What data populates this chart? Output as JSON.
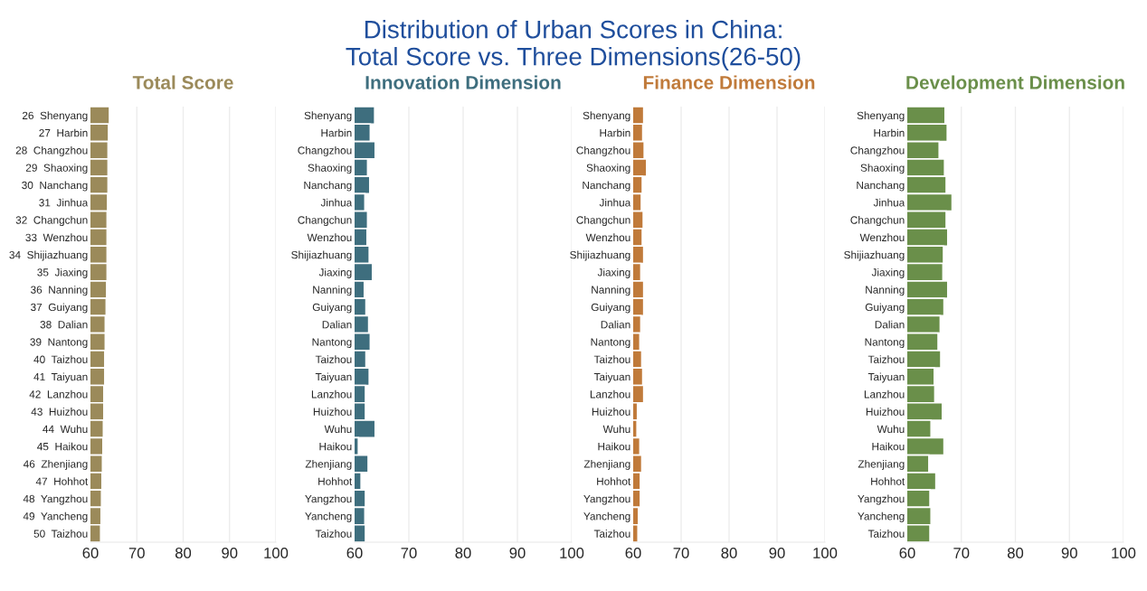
{
  "chart_data": [
    {
      "type": "bar",
      "orientation": "horizontal",
      "title": "Total Score",
      "color": "#9b8a5a",
      "annotations": [
        "Distribution of Urban Scores in China:\nTotal Score vs. Three Dimensions(26-50)"
      ],
      "categories": [
        "26  Shenyang",
        "27  Harbin",
        "28  Changzhou",
        "29  Shaoxing",
        "30  Nanchang",
        "31  Jinhua",
        "32  Changchun",
        "33  Wenzhou",
        "34  Shijiazhuang",
        "35  Jiaxing",
        "36  Nanning",
        "37  Guiyang",
        "38  Dalian",
        "39  Nantong",
        "40  Taizhou",
        "41  Taiyuan",
        "42  Lanzhou",
        "43  Huizhou",
        "44  Wuhu",
        "45  Haikou",
        "46  Zhenjiang",
        "47  Hohhot",
        "48  Yangzhou",
        "49  Yancheng",
        "50  Taizhou"
      ],
      "values": [
        64.1,
        63.9,
        63.8,
        63.8,
        63.8,
        63.7,
        63.6,
        63.6,
        63.6,
        63.6,
        63.5,
        63.4,
        63.2,
        63.2,
        63.1,
        63.1,
        62.9,
        62.9,
        62.8,
        62.7,
        62.6,
        62.5,
        62.4,
        62.3,
        62.2
      ],
      "xlim": [
        60,
        100
      ],
      "xticks": [
        60,
        70,
        80,
        90,
        100
      ],
      "grid": "x"
    },
    {
      "type": "bar",
      "orientation": "horizontal",
      "title": "Innovation Dimension",
      "color": "#3e6e7e",
      "categories": [
        "Shenyang",
        "Harbin",
        "Changzhou",
        "Shaoxing",
        "Nanchang",
        "Jinhua",
        "Changchun",
        "Wenzhou",
        "Shijiazhuang",
        "Jiaxing",
        "Nanning",
        "Guiyang",
        "Dalian",
        "Nantong",
        "Taizhou",
        "Taiyuan",
        "Lanzhou",
        "Huizhou",
        "Wuhu",
        "Haikou",
        "Zhenjiang",
        "Hohhot",
        "Yangzhou",
        "Yancheng",
        "Taizhou"
      ],
      "values": [
        63.7,
        62.9,
        63.8,
        62.4,
        62.8,
        61.9,
        62.4,
        62.3,
        62.7,
        63.3,
        61.8,
        62.1,
        62.6,
        62.9,
        62.1,
        62.7,
        62.0,
        62.0,
        63.8,
        60.7,
        62.5,
        61.2,
        62.0,
        61.9,
        62.0
      ],
      "xlim": [
        60,
        100
      ],
      "xticks": [
        60,
        70,
        80,
        90,
        100
      ],
      "grid": "x"
    },
    {
      "type": "bar",
      "orientation": "horizontal",
      "title": "Finance Dimension",
      "color": "#c07a3a",
      "categories": [
        "Shenyang",
        "Harbin",
        "Changzhou",
        "Shaoxing",
        "Nanchang",
        "Jinhua",
        "Changchun",
        "Wenzhou",
        "Shijiazhuang",
        "Jiaxing",
        "Nanning",
        "Guiyang",
        "Dalian",
        "Nantong",
        "Taizhou",
        "Taiyuan",
        "Lanzhou",
        "Huizhou",
        "Wuhu",
        "Haikou",
        "Zhenjiang",
        "Hohhot",
        "Yangzhou",
        "Yancheng",
        "Taizhou"
      ],
      "values": [
        62.2,
        62.0,
        62.3,
        62.8,
        61.9,
        61.7,
        62.1,
        61.9,
        62.2,
        61.6,
        62.2,
        62.2,
        61.6,
        61.4,
        61.8,
        62.0,
        62.2,
        60.9,
        60.8,
        61.4,
        61.8,
        61.5,
        61.5,
        61.1,
        61.0
      ],
      "xlim": [
        60,
        100
      ],
      "xticks": [
        60,
        70,
        80,
        90,
        100
      ],
      "grid": "x"
    },
    {
      "type": "bar",
      "orientation": "horizontal",
      "title": "Development Dimension",
      "color": "#6a8f4a",
      "categories": [
        "Shenyang",
        "Harbin",
        "Changzhou",
        "Shaoxing",
        "Nanchang",
        "Jinhua",
        "Changchun",
        "Wenzhou",
        "Shijiazhuang",
        "Jiaxing",
        "Nanning",
        "Guiyang",
        "Dalian",
        "Nantong",
        "Taizhou",
        "Taiyuan",
        "Lanzhou",
        "Huizhou",
        "Wuhu",
        "Haikou",
        "Zhenjiang",
        "Hohhot",
        "Yangzhou",
        "Yancheng",
        "Taizhou"
      ],
      "values": [
        67.0,
        67.4,
        65.9,
        66.9,
        67.2,
        68.3,
        67.2,
        67.5,
        66.7,
        66.6,
        67.5,
        66.8,
        66.1,
        65.7,
        66.2,
        65.0,
        65.1,
        66.5,
        64.4,
        66.8,
        64.0,
        65.3,
        64.2,
        64.4,
        64.2
      ],
      "xlim": [
        60,
        100
      ],
      "xticks": [
        60,
        70,
        80,
        90,
        100
      ],
      "grid": "x"
    }
  ]
}
